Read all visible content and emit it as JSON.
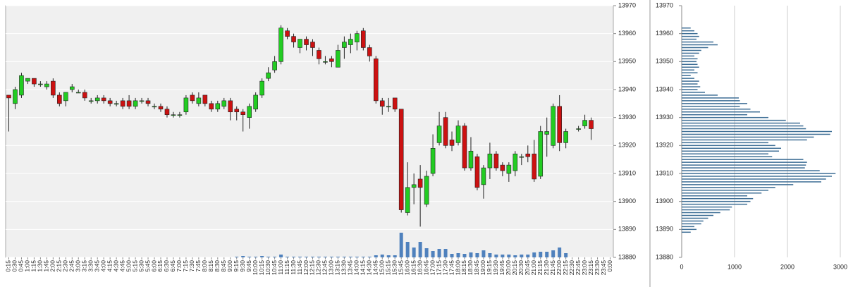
{
  "chart_data": [
    {
      "type": "candlestick",
      "categories": [
        "0:15",
        "0:30",
        "0:45",
        "1:00",
        "1:15",
        "1:30",
        "1:45",
        "2:00",
        "2:15",
        "2:30",
        "2:45",
        "3:00",
        "3:15",
        "3:30",
        "3:45",
        "4:00",
        "4:15",
        "4:30",
        "4:45",
        "5:00",
        "5:15",
        "5:30",
        "5:45",
        "6:00",
        "6:15",
        "6:30",
        "6:45",
        "7:00",
        "7:15",
        "7:30",
        "7:45",
        "8:00",
        "8:15",
        "8:30",
        "8:45",
        "9:00",
        "9:15",
        "9:30",
        "9:45",
        "10:00",
        "10:15",
        "10:30",
        "10:45",
        "11:00",
        "11:15",
        "11:30",
        "11:45",
        "12:00",
        "12:15",
        "12:30",
        "12:45",
        "13:00",
        "13:15",
        "13:30",
        "13:45",
        "14:00",
        "14:15",
        "14:30",
        "14:45",
        "15:00",
        "15:15",
        "15:30",
        "15:45",
        "16:00",
        "16:15",
        "16:30",
        "16:45",
        "17:00",
        "17:15",
        "17:30",
        "17:45",
        "18:00",
        "18:15",
        "18:30",
        "18:45",
        "19:00",
        "19:15",
        "19:30",
        "19:45",
        "20:00",
        "20:15",
        "20:30",
        "20:45",
        "21:00",
        "21:15",
        "21:30",
        "21:45",
        "22:00",
        "22:15",
        "22:30",
        "22:45",
        "23:00",
        "23:15",
        "23:30",
        "23:45",
        "0:00"
      ],
      "open": [
        13938,
        13935,
        13938,
        13943,
        13944,
        13942,
        13941,
        13943,
        13938,
        13936,
        13940,
        13939,
        13939,
        13936,
        13936,
        13937,
        13936,
        13935,
        13936,
        13936,
        13934,
        13936,
        13936,
        13934,
        13934,
        13933,
        13931,
        13931,
        13932,
        13938,
        13935,
        13938,
        13935,
        13933,
        13934,
        13936,
        13933,
        13932,
        13930,
        13933,
        13938,
        13944,
        13947,
        13950,
        13961,
        13959,
        13955,
        13958,
        13957,
        13954,
        13950,
        13951,
        13948,
        13955,
        13956,
        13957,
        13961,
        13955,
        13951,
        13936,
        13934,
        13937,
        13933,
        13896,
        13905,
        13908,
        13899,
        13910,
        13921,
        13930,
        13922,
        13921,
        13927,
        13912,
        13916,
        13906,
        13912,
        13917,
        13913,
        13910,
        13911,
        13916,
        13917,
        13917,
        13909,
        13924,
        13920,
        13934,
        13921,
        null,
        13926,
        13927,
        13929,
        null,
        null,
        null
      ],
      "high": [
        13938,
        13941,
        13946,
        13944,
        13944,
        13943,
        13943,
        13944,
        13939,
        13939,
        13942,
        13940,
        13940,
        13937,
        13938,
        13938,
        13937,
        13936,
        13937,
        13938,
        13937,
        13937,
        13937,
        13935,
        13935,
        13934,
        13932,
        13932,
        13938,
        13939,
        13939,
        13938,
        13936,
        13936,
        13937,
        13937,
        13934,
        13933,
        13935,
        13939,
        13944,
        13948,
        13952,
        13963,
        13962,
        13960,
        13958,
        13959,
        13958,
        13955,
        13952,
        13952,
        13956,
        13959,
        13960,
        13961,
        13962,
        13956,
        13952,
        13937,
        13937,
        13937,
        13933,
        13914,
        13910,
        13913,
        13911,
        13924,
        13932,
        13932,
        13925,
        13929,
        13928,
        13923,
        13917,
        13913,
        13921,
        13918,
        13914,
        13914,
        13918,
        13917,
        13920,
        13922,
        13927,
        13930,
        13935,
        13938,
        13926,
        null,
        13927,
        13931,
        13930,
        null,
        null,
        null
      ],
      "low": [
        13925,
        13933,
        13937,
        13942,
        13941,
        13941,
        13940,
        13937,
        13934,
        13934,
        13939,
        13939,
        13936,
        13935,
        13935,
        13935,
        13934,
        13934,
        13933,
        13933,
        13933,
        13935,
        13934,
        13933,
        13932,
        13930,
        13930,
        13930,
        13931,
        13935,
        13934,
        13934,
        13932,
        13932,
        13933,
        13929,
        13929,
        13925,
        13926,
        13932,
        13937,
        13943,
        13946,
        13949,
        13958,
        13955,
        13953,
        13954,
        13952,
        13949,
        13949,
        13948,
        13948,
        13951,
        13953,
        13954,
        13954,
        13950,
        13935,
        13931,
        13932,
        13932,
        13896,
        13895,
        13899,
        13891,
        13898,
        13909,
        13920,
        13919,
        13918,
        13920,
        13911,
        13911,
        13904,
        13901,
        13908,
        13911,
        13909,
        13907,
        13909,
        13913,
        13914,
        13907,
        13908,
        13916,
        13919,
        13918,
        13919,
        null,
        13925,
        13926,
        13922,
        null,
        null,
        null
      ],
      "close": [
        13937,
        13940,
        13945,
        13944,
        13942,
        13942,
        13942,
        13938,
        13935,
        13939,
        13941,
        13939,
        13937,
        13936,
        13937,
        13936,
        13935,
        13935,
        13934,
        13934,
        13936,
        13936,
        13935,
        13934,
        13933,
        13931,
        13931,
        13931,
        13937,
        13936,
        13937,
        13935,
        13933,
        13935,
        13936,
        13932,
        13932,
        13931,
        13934,
        13938,
        13943,
        13946,
        13950,
        13962,
        13959,
        13957,
        13958,
        13956,
        13955,
        13951,
        13950,
        13950,
        13954,
        13957,
        13958,
        13960,
        13955,
        13952,
        13936,
        13934,
        13934,
        13933,
        13897,
        13905,
        13906,
        13905,
        13909,
        13919,
        13927,
        13920,
        13920,
        13927,
        13912,
        13918,
        13905,
        13912,
        13917,
        13912,
        13911,
        13913,
        13917,
        13916,
        13916,
        13908,
        13925,
        13925,
        13934,
        13921,
        13925,
        null,
        13926,
        13929,
        13926,
        null,
        null,
        null
      ],
      "volume": [
        0,
        0,
        0,
        0,
        0,
        0,
        0,
        0,
        0,
        0,
        0,
        0,
        0,
        0,
        0,
        0,
        0,
        0,
        0,
        0,
        0,
        0,
        0,
        0,
        0,
        0,
        0,
        0,
        0,
        0,
        0,
        0,
        0,
        0,
        0,
        0,
        10,
        20,
        10,
        10,
        20,
        10,
        10,
        40,
        10,
        10,
        10,
        10,
        10,
        10,
        10,
        10,
        10,
        10,
        10,
        10,
        10,
        10,
        30,
        40,
        30,
        30,
        350,
        220,
        140,
        220,
        130,
        90,
        120,
        120,
        50,
        60,
        50,
        70,
        60,
        100,
        60,
        40,
        40,
        40,
        30,
        40,
        40,
        70,
        80,
        80,
        100,
        140,
        60,
        0,
        0,
        0,
        0,
        0,
        0,
        0
      ],
      "up_color": "#22cc22",
      "down_color": "#cc1111",
      "volume_color": "#4f81bd",
      "ylim": [
        13880,
        13970
      ],
      "yticks": [
        13880,
        13890,
        13900,
        13910,
        13920,
        13930,
        13940,
        13950,
        13960,
        13970
      ],
      "grid": true
    },
    {
      "type": "barh",
      "categories": [
        13962,
        13961,
        13960,
        13959,
        13958,
        13957,
        13956,
        13955,
        13954,
        13953,
        13952,
        13951,
        13950,
        13949,
        13948,
        13947,
        13946,
        13945,
        13944,
        13943,
        13942,
        13941,
        13940,
        13939,
        13938,
        13937,
        13936,
        13935,
        13934,
        13933,
        13932,
        13931,
        13930,
        13929,
        13928,
        13927,
        13926,
        13925,
        13924,
        13923,
        13922,
        13921,
        13920,
        13919,
        13918,
        13917,
        13916,
        13915,
        13914,
        13913,
        13912,
        13911,
        13910,
        13909,
        13908,
        13907,
        13906,
        13905,
        13904,
        13903,
        13902,
        13901,
        13900,
        13899,
        13898,
        13897,
        13896,
        13895,
        13894,
        13893,
        13892,
        13891,
        13890,
        13889
      ],
      "values": [
        170,
        240,
        300,
        330,
        280,
        600,
        680,
        500,
        370,
        330,
        240,
        300,
        280,
        300,
        330,
        240,
        300,
        170,
        240,
        330,
        300,
        350,
        300,
        440,
        680,
        1080,
        1100,
        1240,
        1100,
        1300,
        1480,
        1240,
        1640,
        1970,
        2240,
        2300,
        2350,
        2840,
        2810,
        2500,
        2370,
        1640,
        1770,
        1880,
        1840,
        1640,
        1710,
        2300,
        2370,
        2350,
        2330,
        2610,
        2910,
        2840,
        2730,
        2640,
        2110,
        1770,
        1640,
        1510,
        1240,
        1350,
        1300,
        1240,
        950,
        910,
        730,
        600,
        500,
        410,
        370,
        240,
        280,
        170
      ],
      "color": "#3f6f96",
      "xlim": [
        0,
        3000
      ],
      "xticks": [
        0,
        1000,
        2000,
        3000
      ],
      "ylim": [
        13880,
        13970
      ],
      "yticks": [
        13880,
        13890,
        13900,
        13910,
        13920,
        13930,
        13940,
        13950,
        13960,
        13970
      ],
      "grid": true
    }
  ]
}
